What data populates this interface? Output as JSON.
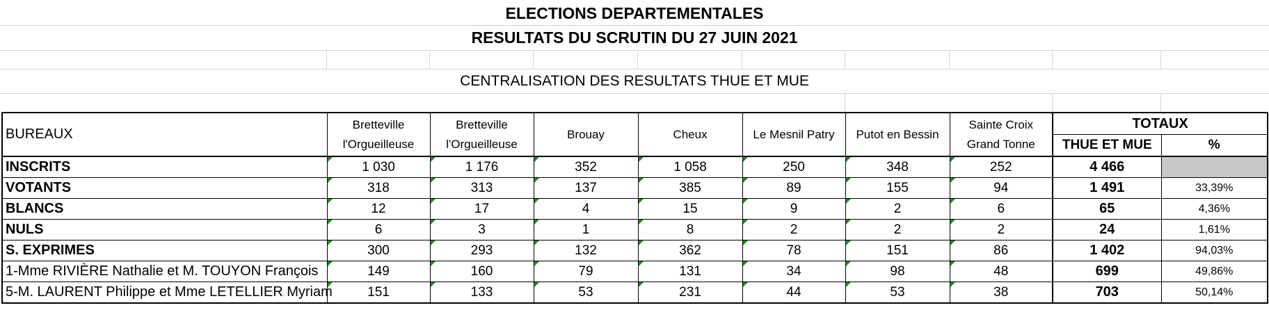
{
  "title_line1": "ELECTIONS DEPARTEMENTALES",
  "title_line2": "RESULTATS DU SCRUTIN DU 27 JUIN 2021",
  "subtitle": "CENTRALISATION DES RESULTATS THUE ET MUE",
  "header": {
    "bureaux": "BUREAUX",
    "communes": [
      [
        "Bretteville",
        "l'Orgueilleuse"
      ],
      [
        "Bretteville",
        "l'Orgueilleuse"
      ],
      [
        "Brouay"
      ],
      [
        "Cheux"
      ],
      [
        "Le Mesnil Patry"
      ],
      [
        "Putot en Bessin"
      ],
      [
        "Sainte Croix",
        "Grand Tonne"
      ]
    ],
    "totaux": "TOTAUX",
    "total_label": "THUE ET MUE",
    "pct_label": "%"
  },
  "rows": [
    {
      "label": "INSCRITS",
      "bold": true,
      "values": [
        "1 030",
        "1 176",
        "352",
        "1 058",
        "250",
        "348",
        "252"
      ],
      "total": "4 466",
      "pct": ""
    },
    {
      "label": "VOTANTS",
      "bold": true,
      "values": [
        "318",
        "313",
        "137",
        "385",
        "89",
        "155",
        "94"
      ],
      "total": "1 491",
      "pct": "33,39%"
    },
    {
      "label": "BLANCS",
      "bold": true,
      "values": [
        "12",
        "17",
        "4",
        "15",
        "9",
        "2",
        "6"
      ],
      "total": "65",
      "pct": "4,36%"
    },
    {
      "label": "NULS",
      "bold": true,
      "values": [
        "6",
        "3",
        "1",
        "8",
        "2",
        "2",
        "2"
      ],
      "total": "24",
      "pct": "1,61%"
    },
    {
      "label": "S. EXPRIMES",
      "bold": true,
      "values": [
        "300",
        "293",
        "132",
        "362",
        "78",
        "151",
        "86"
      ],
      "total": "1 402",
      "pct": "94,03%"
    },
    {
      "label": "1-Mme RIVIÈRE Nathalie et M. TOUYON François",
      "bold": false,
      "values": [
        "149",
        "160",
        "79",
        "131",
        "34",
        "98",
        "48"
      ],
      "total": "699",
      "pct": "49,86%"
    },
    {
      "label": "5-M. LAURENT Philippe et Mme LETELLIER Myriam",
      "bold": false,
      "values": [
        "151",
        "133",
        "53",
        "231",
        "44",
        "53",
        "38"
      ],
      "total": "703",
      "pct": "50,14%"
    }
  ]
}
